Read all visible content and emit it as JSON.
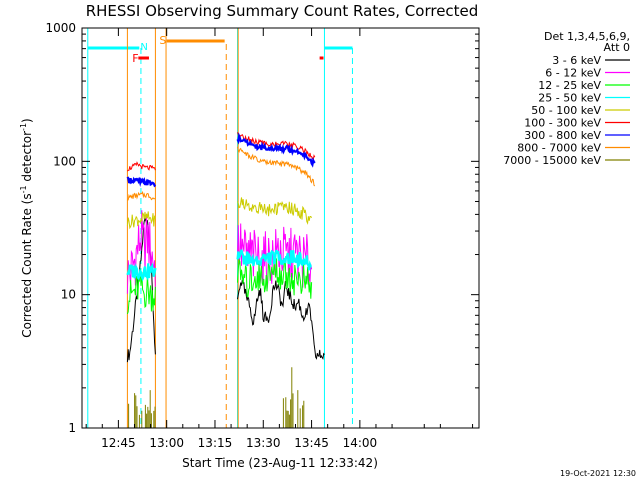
{
  "chart_data": {
    "type": "line",
    "title": "RHESSI Observing Summary Count Rates, Corrected",
    "xlabel": "Start Time (23-Aug-11 12:33:42)",
    "ylabel_main": "Corrected Count Rate (s",
    "ylabel_exp1": "-1",
    "ylabel_mid": " detector",
    "ylabel_exp2": "-1",
    "ylabel_end": ")",
    "yscale": "log",
    "ylim": [
      1,
      1000
    ],
    "xlim_min": [
      753.7,
      877
    ],
    "x_ticks": [
      {
        "t": 765,
        "label": "12:45"
      },
      {
        "t": 780,
        "label": "13:00"
      },
      {
        "t": 795,
        "label": "13:15"
      },
      {
        "t": 810,
        "label": "13:30"
      },
      {
        "t": 825,
        "label": "13:45"
      },
      {
        "t": 840,
        "label": "14:00"
      }
    ],
    "y_ticks": [
      {
        "v": 1,
        "label": "1"
      },
      {
        "v": 10,
        "label": "10"
      },
      {
        "v": 100,
        "label": "100"
      },
      {
        "v": 1000,
        "label": "1000"
      }
    ],
    "legend_header_1": "Det 1,3,4,5,6,9,",
    "legend_header_2": "Att 0",
    "series": [
      {
        "name": "3 - 6 keV",
        "color": "#000000",
        "seg1": [
          [
            767.8,
            3.5
          ],
          [
            768.5,
            3.6
          ],
          [
            769,
            4.5
          ],
          [
            770,
            7
          ],
          [
            771,
            11
          ],
          [
            772,
            18
          ],
          [
            773,
            35
          ],
          [
            774,
            38
          ],
          [
            775,
            20
          ],
          [
            776.5,
            3.5
          ]
        ],
        "seg2": [
          [
            802,
            9
          ],
          [
            803,
            13
          ],
          [
            804,
            11
          ],
          [
            805,
            9
          ],
          [
            806,
            8
          ],
          [
            807,
            6
          ],
          [
            808,
            9
          ],
          [
            809,
            11
          ],
          [
            810,
            7
          ],
          [
            811,
            6.5
          ],
          [
            812,
            7
          ],
          [
            813,
            11
          ],
          [
            814,
            12
          ],
          [
            815,
            10
          ],
          [
            816,
            8
          ],
          [
            817,
            12
          ],
          [
            818,
            10
          ],
          [
            819,
            9
          ],
          [
            820,
            8
          ],
          [
            821,
            9
          ],
          [
            822,
            7
          ],
          [
            823,
            7
          ],
          [
            824.5,
            8
          ],
          [
            826,
            3.5
          ],
          [
            829,
            3.5
          ]
        ]
      },
      {
        "name": "6 - 12 keV",
        "color": "#ff00ff",
        "seg1": [
          [
            767.8,
            14
          ],
          [
            769,
            15
          ],
          [
            770,
            18
          ],
          [
            771,
            22
          ],
          [
            772,
            28
          ],
          [
            773,
            22
          ],
          [
            774,
            27
          ],
          [
            775,
            22
          ],
          [
            776.5,
            16
          ]
        ],
        "seg2": [
          [
            802,
            24
          ],
          [
            803,
            22
          ],
          [
            804,
            21
          ],
          [
            805,
            19
          ],
          [
            806,
            20
          ],
          [
            807,
            19
          ],
          [
            808,
            19
          ],
          [
            810,
            18
          ],
          [
            812,
            18
          ],
          [
            814,
            20
          ],
          [
            815,
            22
          ],
          [
            816,
            20
          ],
          [
            818,
            19
          ],
          [
            820,
            20
          ],
          [
            822,
            18
          ],
          [
            824,
            17
          ],
          [
            825,
            16
          ]
        ]
      },
      {
        "name": "12 - 25 keV",
        "color": "#00ff00",
        "seg1": [
          [
            767.8,
            9.5
          ],
          [
            769,
            10
          ],
          [
            770,
            10.5
          ],
          [
            771,
            11
          ],
          [
            772,
            12
          ],
          [
            773,
            10
          ],
          [
            774,
            11
          ],
          [
            775,
            10
          ],
          [
            776.5,
            10
          ]
        ],
        "seg2": [
          [
            802,
            14
          ],
          [
            803,
            14
          ],
          [
            804,
            13
          ],
          [
            805,
            12
          ],
          [
            806,
            13
          ],
          [
            808,
            14
          ],
          [
            810,
            13
          ],
          [
            812,
            14
          ],
          [
            814,
            15
          ],
          [
            816,
            14
          ],
          [
            818,
            14
          ],
          [
            820,
            13
          ],
          [
            822,
            13
          ],
          [
            824,
            12
          ],
          [
            825,
            11
          ]
        ]
      },
      {
        "name": "25 - 50 keV",
        "color": "#00ffff",
        "seg1": [
          [
            767.8,
            15
          ],
          [
            770,
            15
          ],
          [
            772,
            15
          ],
          [
            774,
            15
          ],
          [
            776.5,
            15
          ]
        ],
        "seg2": [
          [
            802,
            20
          ],
          [
            804,
            19
          ],
          [
            806,
            18
          ],
          [
            808,
            18
          ],
          [
            810,
            18.5
          ],
          [
            812,
            19
          ],
          [
            814,
            19
          ],
          [
            816,
            19
          ],
          [
            818,
            19
          ],
          [
            820,
            19
          ],
          [
            822,
            18
          ],
          [
            824,
            17
          ],
          [
            825,
            16
          ]
        ]
      },
      {
        "name": "50 - 100 keV",
        "color": "#cccc00",
        "seg1": [
          [
            767.8,
            35
          ],
          [
            770,
            36
          ],
          [
            772,
            37
          ],
          [
            774,
            38
          ],
          [
            776.5,
            36
          ]
        ],
        "seg2": [
          [
            802,
            50
          ],
          [
            804,
            48
          ],
          [
            806,
            46
          ],
          [
            808,
            45
          ],
          [
            810,
            44
          ],
          [
            812,
            43
          ],
          [
            814,
            44
          ],
          [
            816,
            46
          ],
          [
            818,
            45
          ],
          [
            820,
            43
          ],
          [
            822,
            41
          ],
          [
            824,
            38
          ],
          [
            825,
            36
          ]
        ]
      },
      {
        "name": "100 - 300 keV",
        "color": "#ff0000",
        "seg1": [
          [
            767.8,
            88
          ],
          [
            769,
            90
          ],
          [
            770,
            92
          ],
          [
            771,
            95
          ],
          [
            772,
            92
          ],
          [
            773,
            90
          ],
          [
            776.5,
            88
          ]
        ],
        "seg2": [
          [
            802,
            160
          ],
          [
            803,
            155
          ],
          [
            805,
            148
          ],
          [
            807,
            142
          ],
          [
            809,
            138
          ],
          [
            811,
            135
          ],
          [
            813,
            135
          ],
          [
            815,
            135
          ],
          [
            817,
            135
          ],
          [
            819,
            132
          ],
          [
            821,
            128
          ],
          [
            823,
            120
          ],
          [
            825,
            108
          ],
          [
            826,
            105
          ]
        ]
      },
      {
        "name": "300 - 800 keV",
        "color": "#0000ff",
        "seg1": [
          [
            767.8,
            73
          ],
          [
            770,
            72
          ],
          [
            772,
            70
          ],
          [
            774,
            69
          ],
          [
            776.5,
            68
          ]
        ],
        "seg2": [
          [
            802,
            150
          ],
          [
            803,
            145
          ],
          [
            805,
            138
          ],
          [
            807,
            132
          ],
          [
            809,
            128
          ],
          [
            811,
            126
          ],
          [
            813,
            125
          ],
          [
            815,
            125
          ],
          [
            817,
            125
          ],
          [
            819,
            122
          ],
          [
            821,
            118
          ],
          [
            823,
            112
          ],
          [
            825,
            100
          ],
          [
            826,
            95
          ]
        ]
      },
      {
        "name": "800 - 7000 keV",
        "color": "#ff8c00",
        "seg1": [
          [
            767.8,
            53
          ],
          [
            770,
            55
          ],
          [
            772,
            56
          ],
          [
            774,
            56
          ],
          [
            776.5,
            52
          ]
        ],
        "seg2": [
          [
            802,
            125
          ],
          [
            803,
            120
          ],
          [
            805,
            112
          ],
          [
            807,
            106
          ],
          [
            809,
            100
          ],
          [
            811,
            98
          ],
          [
            813,
            97
          ],
          [
            815,
            96
          ],
          [
            817,
            95
          ],
          [
            819,
            92
          ],
          [
            821,
            88
          ],
          [
            823,
            82
          ],
          [
            825,
            72
          ],
          [
            826,
            68
          ]
        ]
      },
      {
        "name": "7000 - 15000 keV",
        "color": "#808000",
        "seg1": [
          [
            767.8,
            1
          ],
          [
            776.5,
            1
          ]
        ],
        "seg2": [
          [
            815.5,
            1
          ],
          [
            822.5,
            1
          ]
        ]
      }
    ],
    "annotations": {
      "F_label": "F",
      "N_label": "N",
      "S_label": "S",
      "timestamp": "19-Oct-2021 12:30"
    }
  }
}
